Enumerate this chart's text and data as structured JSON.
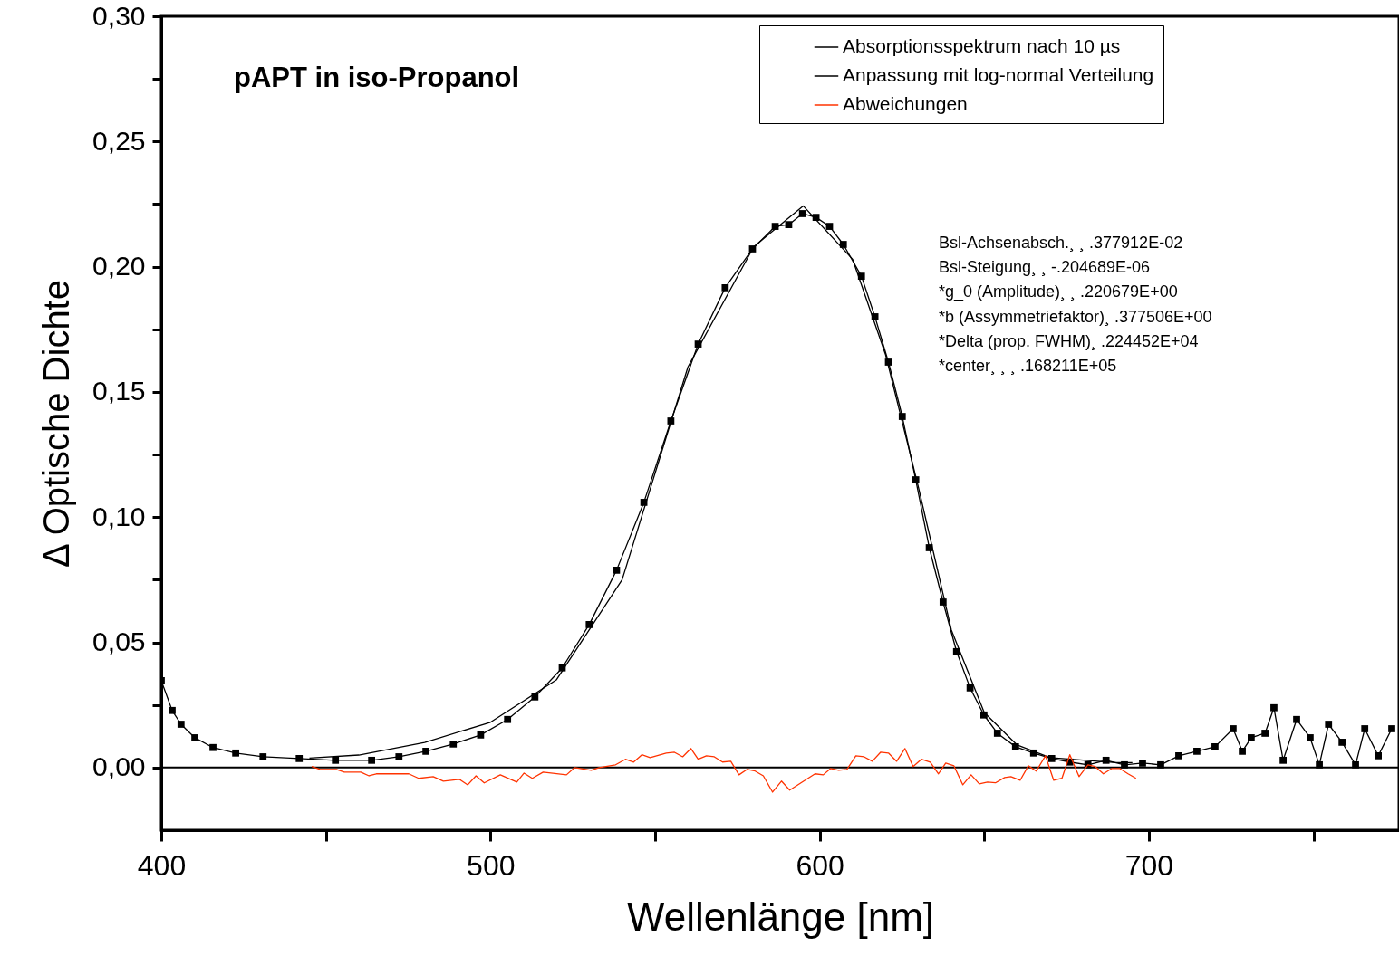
{
  "chart_data": {
    "type": "line",
    "title": "pAPT in iso-Propanol",
    "xlabel": "Wellenlänge [nm]",
    "ylabel": "Δ Optische Dichte",
    "xlim": [
      400,
      776
    ],
    "ylim": [
      -0.025,
      0.3
    ],
    "xticks": [
      400,
      {
        "value": 450,
        "label": null
      },
      500,
      {
        "value": 550,
        "label": null
      },
      600,
      {
        "value": 650,
        "label": null
      },
      700,
      {
        "value": 750,
        "label": null
      }
    ],
    "yticks": [
      {
        "value": 0,
        "label": "0,00"
      },
      {
        "value": 0.025,
        "label": null
      },
      {
        "value": 0.05,
        "label": "0,05"
      },
      {
        "value": 0.075,
        "label": null
      },
      {
        "value": 0.1,
        "label": "0,10"
      },
      {
        "value": 0.125,
        "label": null
      },
      {
        "value": 0.15,
        "label": "0,15"
      },
      {
        "value": 0.175,
        "label": null
      },
      {
        "value": 0.2,
        "label": "0,20"
      },
      {
        "value": 0.225,
        "label": null
      },
      {
        "value": 0.25,
        "label": "0,25"
      },
      {
        "value": 0.275,
        "label": null
      },
      {
        "value": 0.3,
        "label": "0,30"
      }
    ],
    "grid": false,
    "legend": "top right",
    "line_style": "solid",
    "ref_lines": [
      {
        "axis": "y",
        "value": 0,
        "color": "#000000"
      }
    ],
    "annotations": [
      "Bsl-Achsenabsch.¸ ¸ .377912E-02",
      "Bsl-Steigung¸ ¸ -.204689E-06",
      "*g_0 (Amplitude)¸ ¸ .220679E+00",
      "*b (Assymmetriefaktor)¸ .377506E+00",
      "*Delta (prop. FWHM)¸ .224452E+04",
      "*center¸ ¸ ¸ .168211E+05"
    ],
    "series": [
      {
        "name": "Absorptionsspektrum nach 10 µs",
        "color": "#000000",
        "marker": "square",
        "x": [
          400,
          403.3,
          406,
          410.2,
          415.7,
          422.6,
          430.9,
          441.9,
          452.9,
          463.9,
          472.2,
          480.4,
          488.7,
          497,
          505.2,
          513.5,
          521.8,
          530,
          538.3,
          546.6,
          554.8,
          563.1,
          571.3,
          579.6,
          586.5,
          590.6,
          594.8,
          598.9,
          603,
          607.2,
          612.7,
          616.8,
          620.9,
          625.1,
          629.2,
          633.3,
          637.5,
          641.6,
          645.7,
          649.9,
          654,
          659.5,
          665,
          670.5,
          676,
          681.5,
          687,
          692.6,
          698.1,
          703.6,
          709.1,
          714.6,
          720.1,
          725.6,
          728.4,
          731.1,
          735.3,
          738,
          740.8,
          744.9,
          749,
          751.8,
          754.6,
          758.7,
          762.8,
          765.6,
          769.7,
          773.8
        ],
        "values": [
          0.0347,
          0.0228,
          0.0173,
          0.0119,
          0.008,
          0.0058,
          0.0043,
          0.0036,
          0.0029,
          0.0029,
          0.0043,
          0.0065,
          0.0094,
          0.013,
          0.0192,
          0.0282,
          0.0398,
          0.0571,
          0.0788,
          0.1059,
          0.1384,
          0.1691,
          0.1916,
          0.2071,
          0.2161,
          0.2168,
          0.2212,
          0.2197,
          0.2161,
          0.2089,
          0.1962,
          0.18,
          0.1619,
          0.1402,
          0.1149,
          0.0878,
          0.0661,
          0.0463,
          0.0318,
          0.021,
          0.0137,
          0.0083,
          0.0058,
          0.0036,
          0.0022,
          0.0011,
          0.0029,
          0.0011,
          0.0018,
          0.0011,
          0.0047,
          0.0065,
          0.0083,
          0.0155,
          0.0065,
          0.0119,
          0.0137,
          0.0239,
          0.0029,
          0.0192,
          0.0119,
          0.0011,
          0.0173,
          0.0101,
          0.0011,
          0.0155,
          0.0047,
          0.0155
        ]
      },
      {
        "name": "Anpassung mit log-normal Verteilung",
        "color": "#000000",
        "marker": "none",
        "x": [
          445,
          460,
          480,
          500,
          520,
          540,
          560,
          580,
          595,
          610,
          620,
          630,
          640,
          650,
          660,
          670,
          680,
          690,
          695
        ],
        "values": [
          0.0038,
          0.005,
          0.01,
          0.0181,
          0.035,
          0.075,
          0.16,
          0.208,
          0.2243,
          0.203,
          0.165,
          0.112,
          0.055,
          0.022,
          0.009,
          0.004,
          0.003,
          0.002,
          0.002
        ]
      },
      {
        "name": "Abweichungen",
        "color": "#ff3300",
        "marker": "none",
        "x": [
          445.7,
          448.2,
          453.2,
          455.6,
          460.6,
          463.1,
          465.3,
          475.2,
          478.2,
          482.6,
          485.7,
          490.6,
          493.1,
          495.6,
          498.1,
          503,
          508,
          510.2,
          512.7,
          516,
          523.1,
          525.6,
          530.6,
          533,
          538,
          541,
          543.5,
          546,
          548.5,
          553.4,
          555.9,
          558.4,
          560.9,
          563.1,
          565.6,
          568,
          570.5,
          573,
          575.5,
          578,
          580.4,
          582.9,
          585.7,
          588.4,
          590.9,
          598.6,
          601.1,
          603.3,
          605.8,
          608.3,
          611,
          613.5,
          616,
          618.5,
          620.9,
          623.4,
          625.9,
          628.4,
          630.9,
          633.6,
          636.1,
          638.3,
          640.8,
          643.5,
          646,
          648.5,
          651,
          653.4,
          656.2,
          658.1,
          660.9,
          663.4,
          665.8,
          668.6,
          671.1,
          673.6,
          676,
          678.8,
          681.5,
          683.7,
          686.2,
          688.7,
          691.2,
          693.7,
          696.1
        ],
        "values": [
          0.0004,
          -0.0007,
          -0.0007,
          -0.0018,
          -0.0018,
          -0.0033,
          -0.0025,
          -0.0025,
          -0.0043,
          -0.0036,
          -0.0054,
          -0.0047,
          -0.0069,
          -0.0033,
          -0.0061,
          -0.0029,
          -0.0058,
          -0.0022,
          -0.0043,
          -0.0018,
          -0.0029,
          0,
          -0.0011,
          0,
          0.0011,
          0.0033,
          0.0022,
          0.0051,
          0.004,
          0.0058,
          0.0061,
          0.0043,
          0.0076,
          0.0033,
          0.0047,
          0.0043,
          0.0022,
          0.0025,
          -0.0029,
          -0.0007,
          -0.0014,
          -0.0033,
          -0.0098,
          -0.0054,
          -0.009,
          -0.0025,
          -0.0029,
          -0.0004,
          -0.0011,
          -0.0007,
          0.0047,
          0.0043,
          0.0025,
          0.0061,
          0.0058,
          0.0025,
          0.0076,
          0.0004,
          0.0033,
          0.0022,
          -0.0025,
          0.0018,
          0.0007,
          -0.0069,
          -0.0029,
          -0.0065,
          -0.0058,
          -0.0061,
          -0.004,
          -0.0036,
          -0.0051,
          0.0007,
          -0.0014,
          0.0047,
          -0.0051,
          -0.0043,
          0.0051,
          -0.0036,
          0.0011,
          0.0004,
          -0.0025,
          -0.0004,
          -0.0004,
          -0.0025,
          -0.0043
        ]
      }
    ]
  }
}
